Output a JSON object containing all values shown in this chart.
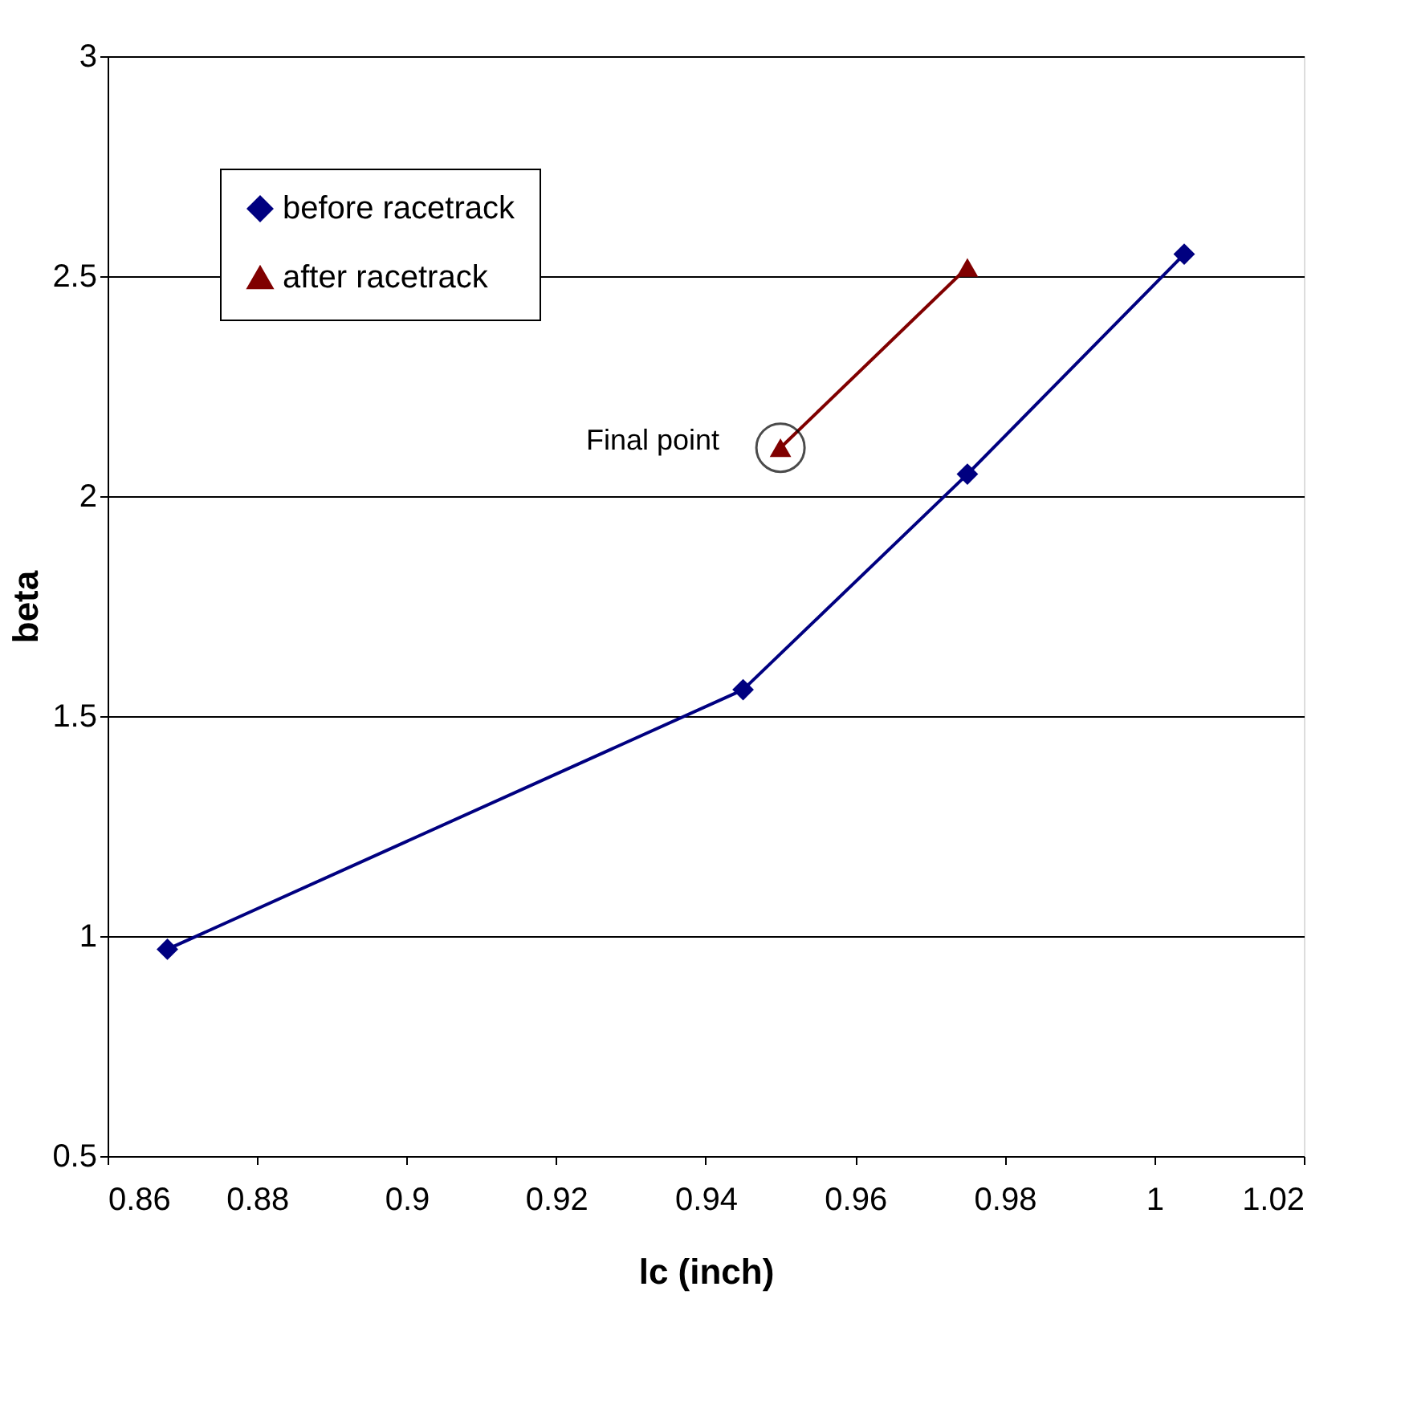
{
  "chart_data": {
    "type": "line",
    "xlabel": "lc (inch)",
    "ylabel": "beta",
    "series": [
      {
        "name": "before racetrack",
        "color": "#000080",
        "marker": "diamond",
        "x": [
          0.868,
          0.945,
          0.975,
          1.004
        ],
        "values": [
          0.97,
          1.56,
          2.05,
          2.55
        ]
      },
      {
        "name": "after racetrack",
        "color": "#800000",
        "marker": "triangle",
        "x": [
          0.95,
          0.975
        ],
        "values": [
          2.11,
          2.52
        ]
      }
    ],
    "annotations": [
      {
        "text": "Final point",
        "x": 0.95,
        "y": 2.11
      }
    ],
    "xlim": [
      0.86,
      1.02
    ],
    "xticks": [
      0.86,
      0.88,
      0.9,
      0.92,
      0.94,
      0.96,
      0.98,
      1,
      1.02
    ],
    "ylim": [
      0.5,
      3
    ],
    "yticks": [
      0.5,
      1,
      1.5,
      2,
      2.5,
      3
    ],
    "grid": "y",
    "legend": "top left",
    "line_style": "solid"
  }
}
